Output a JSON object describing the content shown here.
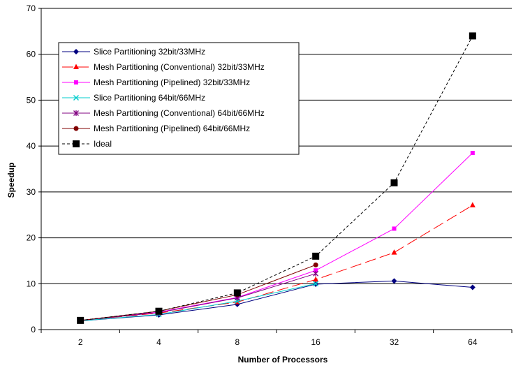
{
  "chart_data": {
    "type": "line",
    "title": "",
    "xlabel": "Number of Processors",
    "ylabel": "Speedup",
    "categories": [
      "2",
      "4",
      "8",
      "16",
      "32",
      "64"
    ],
    "ylim": [
      0,
      70
    ],
    "yticks": [
      0,
      10,
      20,
      30,
      40,
      50,
      60,
      70
    ],
    "grid": "horizontal",
    "legend_position": "top-left",
    "series": [
      {
        "name": "Slice Partitioning 32bit/33MHz",
        "color": "#000080",
        "dash": "",
        "marker": "diamond",
        "values": [
          1.9,
          3.2,
          5.5,
          9.9,
          10.6,
          9.2
        ]
      },
      {
        "name": "Mesh Partitioning (Conventional) 32bit/33MHz",
        "color": "#FF0000",
        "dash": "16 6",
        "marker": "triangle",
        "values": [
          2.0,
          3.6,
          6.0,
          10.9,
          16.8,
          27.1
        ]
      },
      {
        "name": "Mesh Partitioning (Pipelined) 32bit/33MHz",
        "color": "#FF00FF",
        "dash": "",
        "marker": "square",
        "values": [
          2.0,
          3.8,
          7.0,
          12.9,
          22.0,
          38.5
        ]
      },
      {
        "name": "Slice Partitioning 64bit/66MHz",
        "color": "#00CCCC",
        "dash": "",
        "marker": "x",
        "values": [
          1.9,
          3.3,
          6.2,
          10.0,
          null,
          null
        ]
      },
      {
        "name": "Mesh Partitioning (Conventional) 64bit/66MHz",
        "color": "#800080",
        "dash": "",
        "marker": "star",
        "values": [
          2.0,
          3.7,
          6.9,
          12.2,
          null,
          null
        ]
      },
      {
        "name": "Mesh Partitioning (Pipelined) 64bit/66MHz",
        "color": "#800000",
        "dash": "",
        "marker": "circle",
        "values": [
          2.0,
          4.0,
          7.6,
          14.1,
          null,
          null
        ]
      },
      {
        "name": "Ideal",
        "color": "#000000",
        "dash": "4 3",
        "marker": "bigsquare",
        "values": [
          2,
          4,
          8,
          16,
          32,
          64
        ]
      }
    ]
  }
}
